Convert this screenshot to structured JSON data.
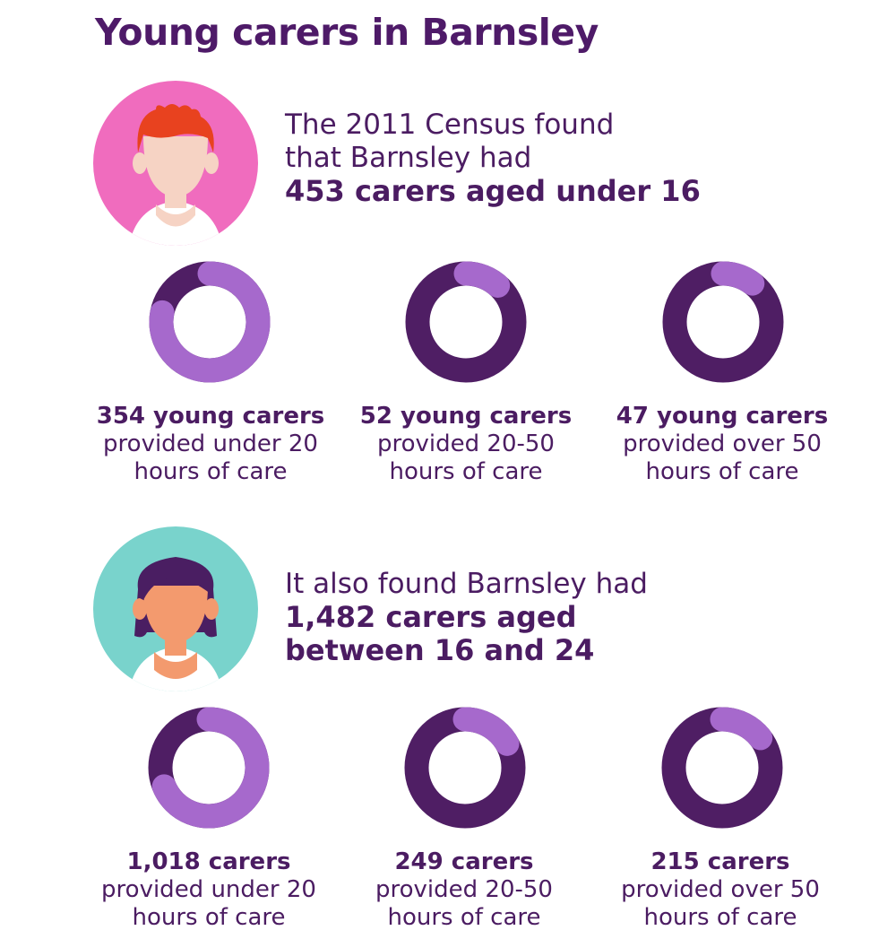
{
  "title": "Young carers in Barnsley",
  "colors": {
    "dark": "#4f1e64",
    "light": "#a669cc",
    "pink": "#f06cbe",
    "teal": "#79d3cc"
  },
  "sections": [
    {
      "avatar": "young-boy-avatar-icon",
      "intro_lines": [
        "The 2011 Census found",
        "that Barnsley had"
      ],
      "highlight_lines": [
        "453 carers aged under 16"
      ],
      "total": 453,
      "groups": [
        {
          "count_label": "354 young carers",
          "line2": "provided under 20",
          "line3": "hours of care",
          "value": 354
        },
        {
          "count_label": "52 young carers",
          "line2": "provided 20-50",
          "line3": "hours of care",
          "value": 52
        },
        {
          "count_label": "47 young carers",
          "line2": "provided over 50",
          "line3": "hours of care",
          "value": 47
        }
      ]
    },
    {
      "avatar": "young-woman-avatar-icon",
      "intro_lines": [
        "It also found Barnsley had"
      ],
      "highlight_lines": [
        "1,482 carers aged",
        "between 16 and 24"
      ],
      "total": 1482,
      "groups": [
        {
          "count_label": "1,018 carers",
          "line2": "provided under 20",
          "line3": "hours of care",
          "value": 1018
        },
        {
          "count_label": "249 carers",
          "line2": "provided 20-50",
          "line3": "hours of care",
          "value": 249
        },
        {
          "count_label": "215 carers",
          "line2": "provided over 50",
          "line3": "hours of care",
          "value": 215
        }
      ]
    }
  ]
}
